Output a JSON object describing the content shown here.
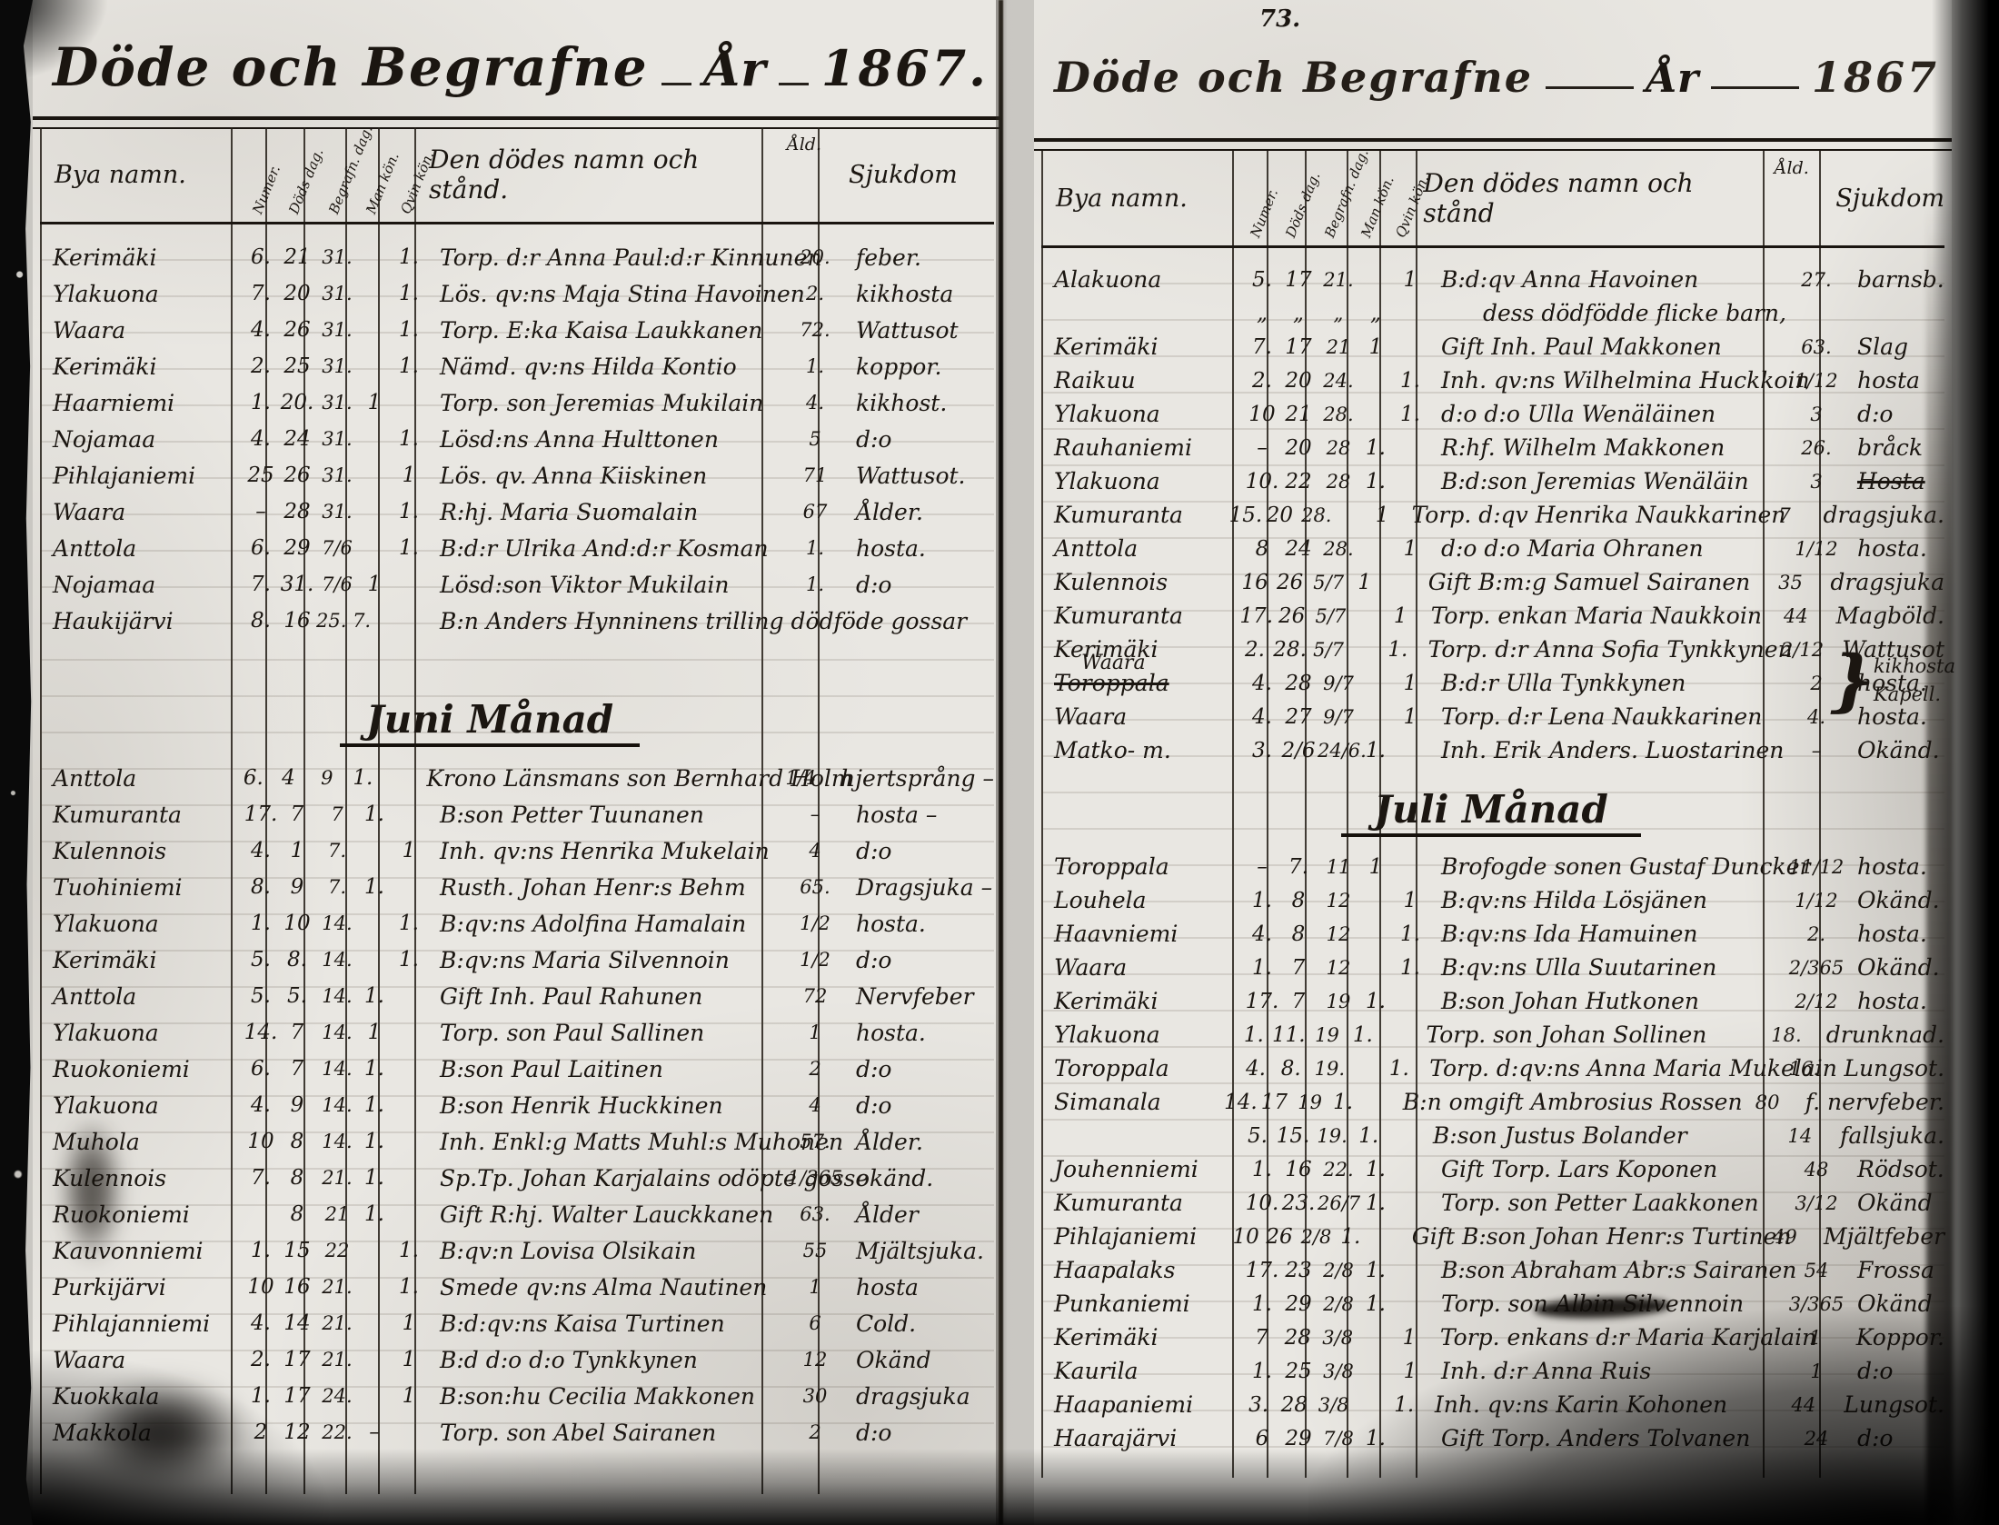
{
  "left_page": {
    "title": "Döde och Begrafne",
    "year_label": "År",
    "year": "1867.",
    "headers": {
      "village": "Bya namn.",
      "num": "Numer.",
      "death": "Döds dag.",
      "burial": "Begrafn. dag.",
      "male": "Man kön.",
      "female": "Qvin kön.",
      "name": "Den dödes namn och stånd.",
      "age": "Åld.",
      "disease": "Sjukdom"
    },
    "sections": [
      {
        "heading": "",
        "rows": [
          {
            "v": "Kerimäki",
            "c1": "6.",
            "c2": "21",
            "c3": "31.",
            "m": "",
            "f": "1.",
            "n": "Torp. d:r Anna Paul:d:r Kinnunen",
            "a": "20.",
            "d": "feber."
          },
          {
            "v": "Ylakuona",
            "c1": "7.",
            "c2": "20",
            "c3": "31.",
            "m": "",
            "f": "1.",
            "n": "Lös. qv:ns Maja Stina Havoinen",
            "a": "2.",
            "d": "kikhosta"
          },
          {
            "v": "Waara",
            "c1": "4.",
            "c2": "26",
            "c3": "31.",
            "m": "",
            "f": "1.",
            "n": "Torp. E:ka Kaisa Laukkanen",
            "a": "72.",
            "d": "Wattusot"
          },
          {
            "v": "Kerimäki",
            "c1": "2.",
            "c2": "25",
            "c3": "31.",
            "m": "",
            "f": "1.",
            "n": "Nämd. qv:ns Hilda Kontio",
            "a": "1.",
            "d": "koppor."
          },
          {
            "v": "Haarniemi",
            "c1": "1.",
            "c2": "20.",
            "c3": "31.",
            "m": "1",
            "f": "",
            "n": "Torp. son Jeremias Mukilain",
            "a": "4.",
            "d": "kikhost."
          },
          {
            "v": "Nojamaa",
            "c1": "4.",
            "c2": "24",
            "c3": "31.",
            "m": "",
            "f": "1.",
            "n": "Lösd:ns Anna Hulttonen",
            "a": "5",
            "d": "d:o"
          },
          {
            "v": "Pihlajaniemi",
            "c1": "25",
            "c2": "26",
            "c3": "31.",
            "m": "",
            "f": "1",
            "n": "Lös. qv. Anna Kiiskinen",
            "a": "71",
            "d": "Wattusot."
          },
          {
            "v": "Waara",
            "c1": "–",
            "c2": "28",
            "c3": "31.",
            "m": "",
            "f": "1.",
            "n": "R:hj. Maria Suomalain",
            "a": "67",
            "d": "Ålder."
          },
          {
            "v": "Anttola",
            "c1": "6.",
            "c2": "29",
            "c3": "7/6",
            "m": "",
            "f": "1.",
            "n": "B:d:r Ulrika And:d:r Kosman",
            "a": "1.",
            "d": "hosta."
          },
          {
            "v": "Nojamaa",
            "c1": "7.",
            "c2": "31.",
            "c3": "7/6",
            "m": "1",
            "f": "",
            "n": "Lösd:son Viktor Mukilain",
            "a": "1.",
            "d": "d:o"
          },
          {
            "v": "Haukijärvi",
            "c1": "8.",
            "c2": "16",
            "c3": "25. 7.",
            "m": "",
            "f": "",
            "n": "B:n Anders Hynninens trilling dödföde gossar",
            "a": "",
            "d": ""
          }
        ]
      },
      {
        "heading": "Juni Månad",
        "rows": [
          {
            "v": "Anttola",
            "c1": "6.",
            "c2": "4",
            "c3": "9",
            "m": "1.",
            "f": "",
            "n": "Krono Länsmans son Bernhard Holm",
            "a": "1/4",
            "d": "hjertsprång –"
          },
          {
            "v": "Kumuranta",
            "c1": "17.",
            "c2": "7",
            "c3": "7",
            "m": "1.",
            "f": "",
            "n": "B:son Petter Tuunanen",
            "a": "–",
            "d": "hosta –"
          },
          {
            "v": "Kulennois",
            "c1": "4.",
            "c2": "1",
            "c3": "7.",
            "m": "",
            "f": "1",
            "n": "Inh. qv:ns Henrika Mukelain",
            "a": "4",
            "d": "d:o"
          },
          {
            "v": "Tuohiniemi",
            "c1": "8.",
            "c2": "9",
            "c3": "7.",
            "m": "1.",
            "f": "",
            "n": "Rusth. Johan Henr:s Behm",
            "a": "65.",
            "d": "Dragsjuka –"
          },
          {
            "v": "Ylakuona",
            "c1": "1.",
            "c2": "10",
            "c3": "14.",
            "m": "",
            "f": "1.",
            "n": "B:qv:ns Adolfina Hamalain",
            "a": "1/2",
            "d": "hosta."
          },
          {
            "v": "Kerimäki",
            "c1": "5.",
            "c2": "8.",
            "c3": "14.",
            "m": "",
            "f": "1.",
            "n": "B:qv:ns Maria Silvennoin",
            "a": "1/2",
            "d": "d:o"
          },
          {
            "v": "Anttola",
            "c1": "5.",
            "c2": "5.",
            "c3": "14.",
            "m": "1.",
            "f": "",
            "n": "Gift Inh. Paul Rahunen",
            "a": "72",
            "d": "Nervfeber"
          },
          {
            "v": "Ylakuona",
            "c1": "14.",
            "c2": "7",
            "c3": "14.",
            "m": "1",
            "f": "",
            "n": "Torp. son Paul Sallinen",
            "a": "1",
            "d": "hosta."
          },
          {
            "v": "Ruokoniemi",
            "c1": "6.",
            "c2": "7",
            "c3": "14.",
            "m": "1.",
            "f": "",
            "n": "B:son Paul Laitinen",
            "a": "2",
            "d": "d:o"
          },
          {
            "v": "Ylakuona",
            "c1": "4.",
            "c2": "9",
            "c3": "14.",
            "m": "1.",
            "f": "",
            "n": "B:son Henrik Huckkinen",
            "a": "4",
            "d": "d:o"
          },
          {
            "v": "Muhola",
            "c1": "10",
            "c2": "8",
            "c3": "14.",
            "m": "1.",
            "f": "",
            "n": "Inh. Enkl:g Matts Muhl:s Muhonen",
            "a": "57.",
            "d": "Ålder."
          },
          {
            "v": "Kulennois",
            "c1": "7.",
            "c2": "8",
            "c3": "21.",
            "m": "1.",
            "f": "",
            "n": "Sp.Tp. Johan Karjalains odöpte gosse",
            "a": "1/365",
            "d": "okänd."
          },
          {
            "v": "Ruokoniemi",
            "c1": "",
            "c2": "8",
            "c3": "21",
            "m": "1.",
            "f": "",
            "n": "Gift R:hj. Walter Lauckkanen",
            "a": "63.",
            "d": "Ålder"
          },
          {
            "v": "Kauvonniemi",
            "c1": "1.",
            "c2": "15",
            "c3": "22",
            "m": "",
            "f": "1.",
            "n": "B:qv:n Lovisa Olsikain",
            "a": "55",
            "d": "Mjältsjuka."
          },
          {
            "v": "Purkijärvi",
            "c1": "10",
            "c2": "16",
            "c3": "21.",
            "m": "",
            "f": "1.",
            "n": "Smede qv:ns Alma Nautinen",
            "a": "1",
            "d": "hosta"
          },
          {
            "v": "Pihlajanniemi",
            "c1": "4.",
            "c2": "14",
            "c3": "21.",
            "m": "",
            "f": "1",
            "n": "B:d:qv:ns Kaisa Turtinen",
            "a": "6",
            "d": "Cold."
          },
          {
            "v": "Waara",
            "c1": "2.",
            "c2": "17",
            "c3": "21.",
            "m": "",
            "f": "1",
            "n": "B:d d:o d:o Tynkkynen",
            "a": "12",
            "d": "Okänd"
          },
          {
            "v": "Kuokkala",
            "c1": "1.",
            "c2": "17",
            "c3": "24.",
            "m": "",
            "f": "1",
            "n": "B:son:hu Cecilia Makkonen",
            "a": "30",
            "d": "dragsjuka"
          },
          {
            "v": "Makkola",
            "c1": "2",
            "c2": "12",
            "c3": "22.",
            "m": "–",
            "f": "",
            "n": "Torp. son Abel Sairanen",
            "a": "2",
            "d": "d:o"
          }
        ]
      }
    ]
  },
  "right_page": {
    "title": "Döde och Begrafne",
    "year_label": "År",
    "year": "1867",
    "page_number": "73.",
    "headers": {
      "village": "Bya namn.",
      "num": "Numer.",
      "death": "Döds dag.",
      "burial": "Begrafn. dag.",
      "male": "Man kön.",
      "female": "Qvin kön.",
      "name": "Den dödes namn och stånd",
      "age": "Åld.",
      "disease": "Sjukdom"
    },
    "margin_note": {
      "brace": "}",
      "note1": "kikhosta",
      "note2": "Kapell."
    },
    "sections": [
      {
        "heading": "",
        "rows": [
          {
            "v": "Alakuona",
            "c1": "5.",
            "c2": "17",
            "c3": "21.",
            "m": "",
            "f": "1",
            "n": "B:d:qv Anna Havoinen",
            "a": "27.",
            "d": "barnsb."
          },
          {
            "v": "",
            "c1": "„",
            "c2": "„",
            "c3": "„",
            "m": "„",
            "f": "",
            "n": "dess dödfödde flicke barn,",
            "a": "",
            "d": "",
            "ind": true
          },
          {
            "v": "Kerimäki",
            "c1": "7.",
            "c2": "17",
            "c3": "21",
            "m": "1",
            "f": "",
            "n": "Gift Inh. Paul Makkonen",
            "a": "63.",
            "d": "Slag"
          },
          {
            "v": "Raikuu",
            "c1": "2.",
            "c2": "20",
            "c3": "24.",
            "m": "",
            "f": "1.",
            "n": "Inh. qv:ns Wilhelmina Huckkoin",
            "a": "1/12",
            "d": "hosta"
          },
          {
            "v": "Ylakuona",
            "c1": "10",
            "c2": "21",
            "c3": "28.",
            "m": "",
            "f": "1.",
            "n": "d:o d:o Ulla Wenäläinen",
            "a": "3",
            "d": "d:o"
          },
          {
            "v": "Rauhaniemi",
            "c1": "–",
            "c2": "20",
            "c3": "28",
            "m": "1.",
            "f": "",
            "n": "R:hf. Wilhelm Makkonen",
            "a": "26.",
            "d": "bråck"
          },
          {
            "v": "Ylakuona",
            "c1": "10.",
            "c2": "22",
            "c3": "28",
            "m": "1.",
            "f": "",
            "n": "B:d:son Jeremias Wenäläin",
            "a": "3",
            "d": "Hosta",
            "ds": true
          },
          {
            "v": "Kumuranta",
            "c1": "15.",
            "c2": "20",
            "c3": "28.",
            "m": "",
            "f": "1",
            "n": "Torp. d:qv Henrika Naukkarinen",
            "a": "7",
            "d": "dragsjuka."
          },
          {
            "v": "Anttola",
            "c1": "8",
            "c2": "24",
            "c3": "28.",
            "m": "",
            "f": "1",
            "n": "d:o d:o Maria Ohranen",
            "a": "1/12",
            "d": "hosta."
          },
          {
            "v": "Kulennois",
            "c1": "16",
            "c2": "26",
            "c3": "5/7",
            "m": "1",
            "f": "",
            "n": "Gift B:m:g Samuel Sairanen",
            "a": "35",
            "d": "dragsjuka"
          },
          {
            "v": "Kumuranta",
            "c1": "17.",
            "c2": "26",
            "c3": "5/7",
            "m": "",
            "f": "1",
            "n": "Torp. enkan Maria Naukkoin",
            "a": "44",
            "d": "Magböld."
          },
          {
            "v": "Kerimäki",
            "c1": "2.",
            "c2": "28.",
            "c3": "5/7",
            "m": "",
            "f": "1.",
            "n": "Torp. d:r Anna Sofia Tynkkynen",
            "a": "2/12",
            "d": "Wattusot"
          },
          {
            "v": "Waara",
            "vs": "Toroppala",
            "c1": "4.",
            "c2": "28",
            "c3": "9/7",
            "m": "",
            "f": "1",
            "n": "B:d:r Ulla Tynkkynen",
            "a": "2",
            "d": "hosta."
          },
          {
            "v": "Waara",
            "c1": "4.",
            "c2": "27",
            "c3": "9/7",
            "m": "",
            "f": "1",
            "n": "Torp. d:r Lena Naukkarinen",
            "a": "4.",
            "d": "hosta."
          },
          {
            "v": "Matko- m.",
            "c1": "3.",
            "c2": "2/6",
            "c3": "24/6.",
            "m": "1.",
            "f": "",
            "n": "Inh. Erik Anders. Luostarinen",
            "a": "–",
            "d": "Okänd."
          }
        ]
      },
      {
        "heading": "Juli Månad",
        "rows": [
          {
            "v": "Toroppala",
            "c1": "–",
            "c2": "7.",
            "c3": "11",
            "m": "1",
            "f": "",
            "n": "Brofogde sonen Gustaf Duncker",
            "a": "11/12",
            "d": "hosta."
          },
          {
            "v": "Louhela",
            "c1": "1.",
            "c2": "8",
            "c3": "12",
            "m": "",
            "f": "1",
            "n": "B:qv:ns Hilda Lösjänen",
            "a": "1/12",
            "d": "Okänd."
          },
          {
            "v": "Haavniemi",
            "c1": "4.",
            "c2": "8",
            "c3": "12",
            "m": "",
            "f": "1.",
            "n": "B:qv:ns Ida Hamuinen",
            "a": "2.",
            "d": "hosta."
          },
          {
            "v": "Waara",
            "c1": "1.",
            "c2": "7",
            "c3": "12",
            "m": "",
            "f": "1.",
            "n": "B:qv:ns Ulla Suutarinen",
            "a": "2/365",
            "d": "Okänd."
          },
          {
            "v": "Kerimäki",
            "c1": "17.",
            "c2": "7",
            "c3": "19",
            "m": "1.",
            "f": "",
            "n": "B:son Johan Hutkonen",
            "a": "2/12",
            "d": "hosta."
          },
          {
            "v": "Ylakuona",
            "c1": "1.",
            "c2": "11.",
            "c3": "19",
            "m": "1.",
            "f": "",
            "n": "Torp. son Johan Sollinen",
            "a": "18.",
            "d": "drunknad."
          },
          {
            "v": "Toroppala",
            "c1": "4.",
            "c2": "8.",
            "c3": "19.",
            "m": "",
            "f": "1.",
            "n": "Torp. d:qv:ns Anna Maria Mukelain",
            "a": "16.",
            "d": "Lungsot."
          },
          {
            "v": "Simanala",
            "c1": "14.",
            "c2": "17",
            "c3": "19",
            "m": "1.",
            "f": "",
            "n": "B:n omgift Ambrosius Rossen",
            "a": "80",
            "d": "f. nervfeber."
          },
          {
            "v": "",
            "c1": "5.",
            "c2": "15.",
            "c3": "19.",
            "m": "1.",
            "f": "",
            "n": "B:son Justus Bolander",
            "a": "14",
            "d": "fallsjuka."
          },
          {
            "v": "Jouhenniemi",
            "c1": "1.",
            "c2": "16",
            "c3": "22.",
            "m": "1.",
            "f": "",
            "n": "Gift Torp. Lars Koponen",
            "a": "48",
            "d": "Rödsot."
          },
          {
            "v": "Kumuranta",
            "c1": "10.",
            "c2": "23.",
            "c3": "26/7",
            "m": "1.",
            "f": "",
            "n": "Torp. son Petter Laakkonen",
            "a": "3/12",
            "d": "Okänd"
          },
          {
            "v": "Pihlajaniemi",
            "c1": "10",
            "c2": "26",
            "c3": "2/8",
            "m": "1.",
            "f": "",
            "n": "Gift B:son Johan Henr:s Turtinen",
            "a": "49",
            "d": "Mjältfeber"
          },
          {
            "v": "Haapalaks",
            "c1": "17.",
            "c2": "23",
            "c3": "2/8",
            "m": "1.",
            "f": "",
            "n": "B:son Abraham Abr:s Sairanen",
            "a": "54",
            "d": "Frossa"
          },
          {
            "v": "Punkaniemi",
            "c1": "1.",
            "c2": "29",
            "c3": "2/8",
            "m": "1.",
            "f": "",
            "n": "Torp. son Albin Silvennoin",
            "a": "3/365",
            "d": "Okänd"
          },
          {
            "v": "Kerimäki",
            "c1": "7",
            "c2": "28",
            "c3": "3/8",
            "m": "",
            "f": "1",
            "n": "Torp. enkans d:r Maria Karjalain",
            "a": "1",
            "d": "Koppor."
          },
          {
            "v": "Kaurila",
            "c1": "1.",
            "c2": "25",
            "c3": "3/8",
            "m": "",
            "f": "1",
            "n": "Inh. d:r Anna Ruis",
            "a": "1",
            "d": "d:o"
          },
          {
            "v": "Haapaniemi",
            "c1": "3.",
            "c2": "28",
            "c3": "3/8",
            "m": "",
            "f": "1.",
            "n": "Inh. qv:ns Karin Kohonen",
            "a": "44",
            "d": "Lungsot."
          },
          {
            "v": "Haarajärvi",
            "c1": "6",
            "c2": "29",
            "c3": "7/8",
            "m": "1.",
            "f": "",
            "n": "Gift Torp. Anders Tolvanen",
            "a": "24",
            "d": "d:o"
          }
        ]
      }
    ]
  }
}
